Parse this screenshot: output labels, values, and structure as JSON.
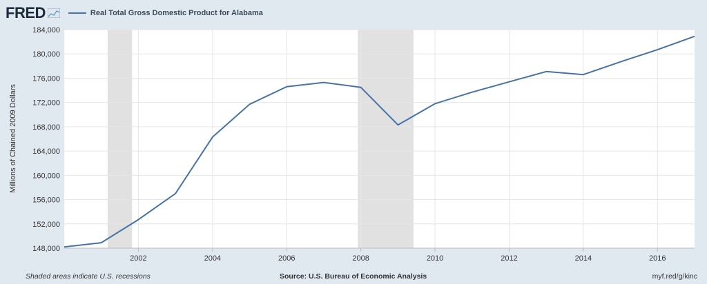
{
  "header": {
    "logo_text": "FRED",
    "legend_label": "Real Total Gross Domestic Product for Alabama"
  },
  "footer": {
    "recession_note": "Shaded areas indicate U.S. recessions",
    "source": "Source: U.S. Bureau of Economic Analysis",
    "short_url": "myf.red/g/kinc"
  },
  "colors": {
    "series": "#4572a7",
    "recession": "#e1e1e1",
    "page_background": "#e1e9f0"
  },
  "chart_data": {
    "type": "line",
    "title": "",
    "ylabel": "Millions of Chained 2009 Dollars",
    "xlabel": "",
    "ylim": [
      148000,
      184000
    ],
    "xlim": [
      2000,
      2017
    ],
    "grid": true,
    "legend_position": "top-left",
    "x_ticks": [
      2002,
      2004,
      2006,
      2008,
      2010,
      2012,
      2014,
      2016
    ],
    "x_tick_labels": [
      "2002",
      "2004",
      "2006",
      "2008",
      "2010",
      "2012",
      "2014",
      "2016"
    ],
    "y_ticks": [
      148000,
      152000,
      156000,
      160000,
      164000,
      168000,
      172000,
      176000,
      180000,
      184000
    ],
    "y_tick_labels": [
      "148,000",
      "152,000",
      "156,000",
      "160,000",
      "164,000",
      "168,000",
      "172,000",
      "176,000",
      "180,000",
      "184,000"
    ],
    "recessions": [
      {
        "start": 2001.17,
        "end": 2001.83
      },
      {
        "start": 2007.92,
        "end": 2009.42
      }
    ],
    "series": [
      {
        "name": "Real Total Gross Domestic Product for Alabama",
        "x": [
          2000,
          2001,
          2002,
          2003,
          2004,
          2005,
          2006,
          2007,
          2008,
          2009,
          2010,
          2011,
          2012,
          2013,
          2014,
          2015,
          2016,
          2017
        ],
        "values": [
          148200,
          148900,
          152700,
          157000,
          166300,
          171700,
          174600,
          175300,
          174500,
          168300,
          171800,
          173700,
          175400,
          177100,
          176600,
          178700,
          180700,
          182900
        ]
      }
    ]
  }
}
